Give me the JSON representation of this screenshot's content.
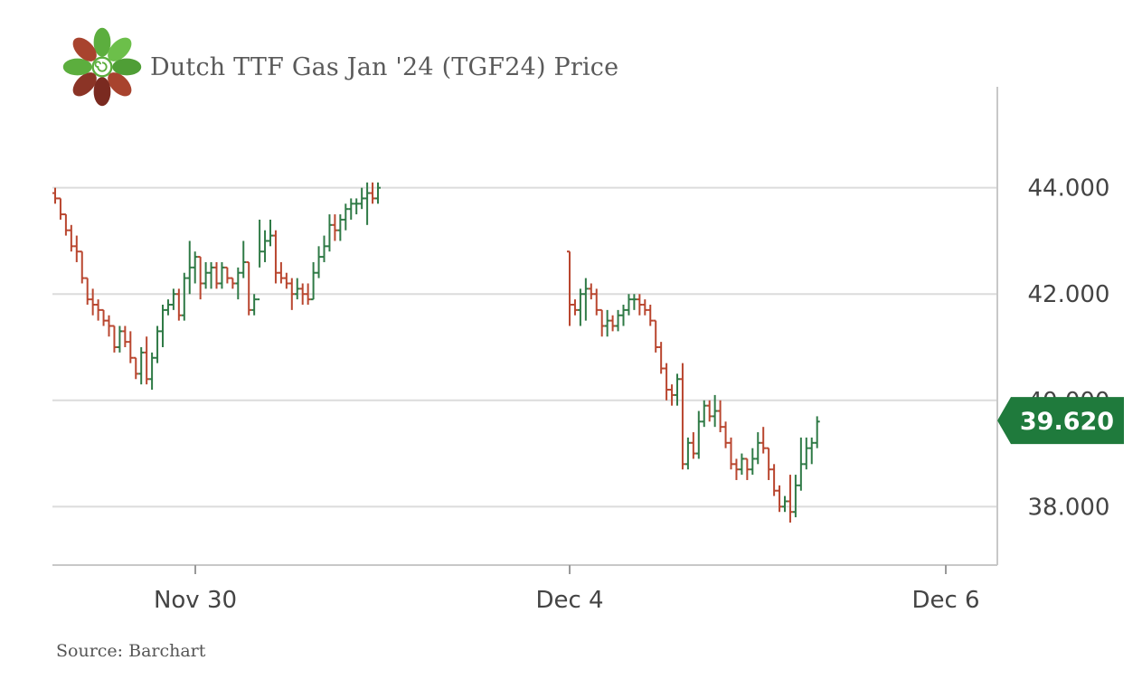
{
  "header": {
    "title": "Dutch TTF Gas Jan '24 (TGF24) Price"
  },
  "source": "Source: Barchart",
  "logo": {
    "icon": "flower-logo-icon",
    "colors": [
      "#5cae3e",
      "#7a2a20",
      "#a8432e"
    ]
  },
  "colors": {
    "up": "#2f7a46",
    "down": "#b9462f",
    "last_price_bg": "#1f7a3c",
    "grid": "#dcdcdc",
    "axis": "#c8c8c8"
  },
  "chart_data": {
    "type": "ohlc",
    "x_ticks": [
      "Nov 30",
      "Dec 4",
      "Dec 6"
    ],
    "y_ticks": [
      "38.000",
      "40.000",
      "42.000",
      "44.000"
    ],
    "ylim": [
      36.9,
      45.9
    ],
    "last_price": "39.620",
    "grid": true,
    "series": [
      {
        "segment": 1,
        "bars": [
          [
            43.9,
            44.0,
            43.7,
            43.8
          ],
          [
            43.8,
            43.8,
            43.4,
            43.5
          ],
          [
            43.5,
            43.5,
            43.1,
            43.2
          ],
          [
            43.2,
            43.3,
            42.8,
            42.9
          ],
          [
            42.9,
            43.1,
            42.6,
            42.8
          ],
          [
            42.8,
            42.8,
            42.2,
            42.3
          ],
          [
            42.3,
            42.3,
            41.8,
            41.9
          ],
          [
            41.9,
            42.1,
            41.6,
            41.8
          ],
          [
            41.8,
            41.9,
            41.5,
            41.7
          ],
          [
            41.7,
            41.7,
            41.4,
            41.5
          ],
          [
            41.5,
            41.6,
            41.2,
            41.4
          ],
          [
            41.4,
            41.4,
            40.9,
            41.0
          ],
          [
            41.0,
            41.4,
            40.9,
            41.3
          ],
          [
            41.3,
            41.4,
            41.0,
            41.1
          ],
          [
            41.1,
            41.3,
            40.7,
            40.8
          ],
          [
            40.8,
            40.8,
            40.4,
            40.5
          ],
          [
            40.5,
            41.0,
            40.3,
            40.9
          ],
          [
            40.9,
            41.2,
            40.3,
            40.4
          ],
          [
            40.4,
            40.9,
            40.2,
            40.8
          ],
          [
            40.8,
            41.4,
            40.7,
            41.3
          ],
          [
            41.3,
            41.8,
            41.0,
            41.7
          ],
          [
            41.7,
            41.9,
            41.6,
            41.8
          ],
          [
            41.8,
            42.1,
            41.7,
            42.0
          ],
          [
            42.0,
            42.1,
            41.5,
            41.6
          ],
          [
            41.6,
            42.4,
            41.5,
            42.3
          ],
          [
            42.3,
            43.0,
            42.0,
            42.5
          ],
          [
            42.5,
            42.8,
            42.2,
            42.7
          ],
          [
            42.7,
            42.7,
            41.9,
            42.2
          ],
          [
            42.2,
            42.6,
            42.1,
            42.4
          ],
          [
            42.4,
            42.6,
            42.1,
            42.5
          ],
          [
            42.5,
            42.6,
            42.1,
            42.2
          ],
          [
            42.2,
            42.6,
            42.1,
            42.5
          ],
          [
            42.5,
            42.5,
            42.2,
            42.3
          ],
          [
            42.3,
            42.3,
            42.1,
            42.2
          ],
          [
            42.2,
            42.5,
            41.9,
            42.4
          ],
          [
            42.4,
            43.0,
            42.3,
            42.6
          ],
          [
            42.6,
            42.6,
            41.6,
            41.7
          ],
          [
            41.7,
            42.0,
            41.6,
            41.9
          ],
          [
            41.9,
            43.4,
            42.5,
            42.8
          ],
          [
            42.8,
            43.2,
            42.6,
            43.0
          ],
          [
            43.0,
            43.4,
            42.9,
            43.1
          ],
          [
            43.1,
            43.2,
            42.2,
            42.4
          ],
          [
            42.4,
            42.6,
            42.2,
            42.3
          ],
          [
            42.3,
            42.4,
            42.1,
            42.2
          ],
          [
            42.2,
            42.3,
            41.7,
            42.0
          ],
          [
            42.0,
            42.3,
            41.9,
            42.1
          ],
          [
            42.1,
            42.2,
            41.8,
            42.0
          ],
          [
            42.0,
            42.2,
            41.8,
            41.9
          ],
          [
            41.9,
            42.6,
            41.9,
            42.4
          ],
          [
            42.4,
            42.9,
            42.3,
            42.7
          ],
          [
            42.7,
            43.1,
            42.6,
            42.9
          ],
          [
            42.9,
            43.5,
            42.8,
            43.3
          ],
          [
            43.3,
            43.5,
            43.0,
            43.2
          ],
          [
            43.2,
            43.5,
            43.0,
            43.4
          ],
          [
            43.4,
            43.7,
            43.2,
            43.6
          ],
          [
            43.6,
            43.8,
            43.4,
            43.7
          ],
          [
            43.7,
            43.8,
            43.5,
            43.7
          ],
          [
            43.7,
            44.0,
            43.6,
            43.8
          ],
          [
            43.8,
            44.1,
            43.3,
            43.9
          ],
          [
            43.9,
            44.1,
            43.7,
            43.8
          ],
          [
            43.8,
            44.1,
            43.7,
            44.0
          ]
        ]
      },
      {
        "segment": 2,
        "bars": [
          [
            42.8,
            42.8,
            41.4,
            41.8
          ],
          [
            41.8,
            41.9,
            41.6,
            41.7
          ],
          [
            41.7,
            42.1,
            41.4,
            42.0
          ],
          [
            42.0,
            42.3,
            41.5,
            42.1
          ],
          [
            42.1,
            42.2,
            41.9,
            42.0
          ],
          [
            42.0,
            42.1,
            41.6,
            41.7
          ],
          [
            41.7,
            41.7,
            41.2,
            41.4
          ],
          [
            41.4,
            41.7,
            41.2,
            41.5
          ],
          [
            41.5,
            41.6,
            41.3,
            41.4
          ],
          [
            41.4,
            41.7,
            41.3,
            41.6
          ],
          [
            41.6,
            41.8,
            41.4,
            41.7
          ],
          [
            41.7,
            42.0,
            41.6,
            41.9
          ],
          [
            41.9,
            42.0,
            41.7,
            41.9
          ],
          [
            41.9,
            42.0,
            41.6,
            41.8
          ],
          [
            41.8,
            41.9,
            41.6,
            41.7
          ],
          [
            41.7,
            41.8,
            41.4,
            41.5
          ],
          [
            41.5,
            41.5,
            40.9,
            41.0
          ],
          [
            41.0,
            41.1,
            40.5,
            40.6
          ],
          [
            40.6,
            40.7,
            40.0,
            40.2
          ],
          [
            40.2,
            40.3,
            39.9,
            40.1
          ],
          [
            40.1,
            40.5,
            39.9,
            40.4
          ],
          [
            40.4,
            40.7,
            38.7,
            38.8
          ],
          [
            38.8,
            39.3,
            38.7,
            39.2
          ],
          [
            39.2,
            39.4,
            38.9,
            39.0
          ],
          [
            39.0,
            39.8,
            38.9,
            39.6
          ],
          [
            39.6,
            40.0,
            39.5,
            39.9
          ],
          [
            39.9,
            40.0,
            39.6,
            39.7
          ],
          [
            39.7,
            40.1,
            39.5,
            39.8
          ],
          [
            39.8,
            40.0,
            39.4,
            39.5
          ],
          [
            39.5,
            39.6,
            39.1,
            39.2
          ],
          [
            39.2,
            39.3,
            38.7,
            38.8
          ],
          [
            38.8,
            38.9,
            38.5,
            38.7
          ],
          [
            38.7,
            39.0,
            38.6,
            38.9
          ],
          [
            38.9,
            38.9,
            38.5,
            38.7
          ],
          [
            38.7,
            39.1,
            38.6,
            38.9
          ],
          [
            38.9,
            39.4,
            38.8,
            39.2
          ],
          [
            39.2,
            39.5,
            39.0,
            39.1
          ],
          [
            39.1,
            39.1,
            38.5,
            38.7
          ],
          [
            38.7,
            38.8,
            38.2,
            38.3
          ],
          [
            38.3,
            38.4,
            37.9,
            38.0
          ],
          [
            38.0,
            38.2,
            37.9,
            38.1
          ],
          [
            38.1,
            38.6,
            37.7,
            37.9
          ],
          [
            37.9,
            38.6,
            37.8,
            38.4
          ],
          [
            38.4,
            39.3,
            38.3,
            38.8
          ],
          [
            38.8,
            39.3,
            38.7,
            39.1
          ],
          [
            39.1,
            39.3,
            38.8,
            39.2
          ],
          [
            39.2,
            39.7,
            39.1,
            39.6
          ]
        ]
      }
    ]
  }
}
